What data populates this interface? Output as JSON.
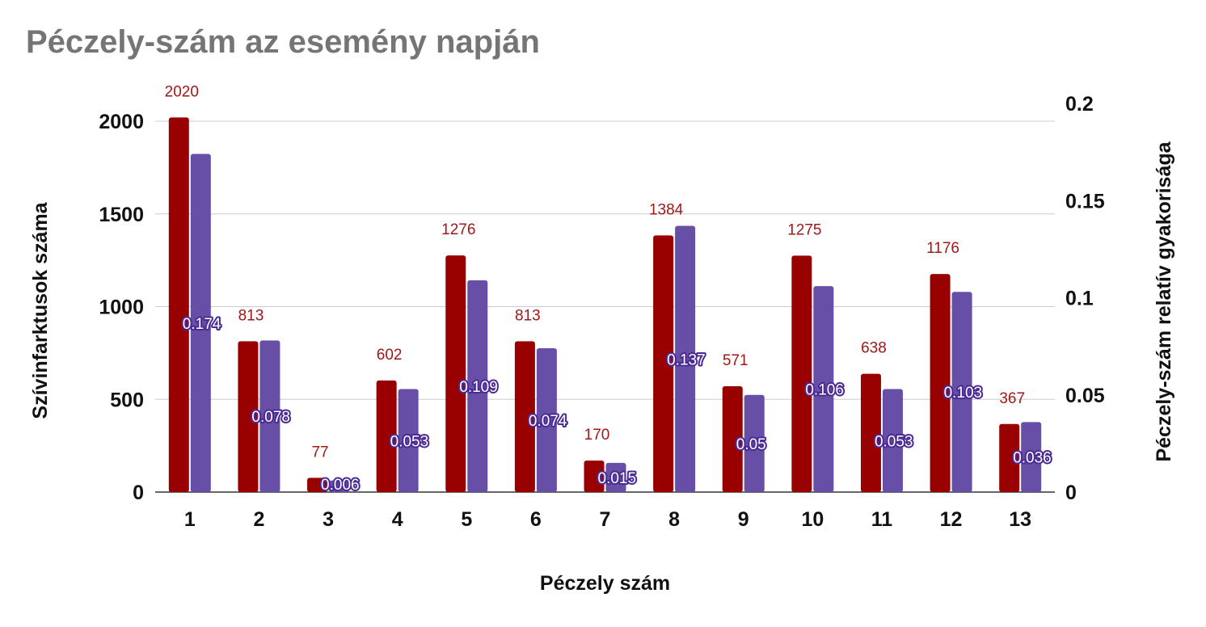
{
  "chart_data": {
    "type": "bar",
    "title": "Péczely-szám az esemény napján",
    "xlabel": "Péczely szám",
    "ylabel": "Szívinfarktusok száma",
    "y2label": "Péczely-szám relatív gyakorisága",
    "categories": [
      "1",
      "2",
      "3",
      "4",
      "5",
      "6",
      "7",
      "8",
      "9",
      "10",
      "11",
      "12",
      "13"
    ],
    "ylim": [
      0,
      2000
    ],
    "y2lim": [
      0,
      0.2
    ],
    "yticks": [
      "0",
      "500",
      "1000",
      "1500",
      "2000"
    ],
    "y2ticks": [
      "0",
      "0.05",
      "0.1",
      "0.15",
      "0.2"
    ],
    "grid": true,
    "series": [
      {
        "axis": "left",
        "color": "#990000",
        "values": [
          2020,
          813,
          77,
          602,
          1276,
          813,
          170,
          1384,
          571,
          1275,
          638,
          1176,
          367
        ],
        "labels": [
          "2020",
          "813",
          "77",
          "602",
          "1276",
          "813",
          "170",
          "1384",
          "571",
          "1275",
          "638",
          "1176",
          "367"
        ]
      },
      {
        "axis": "right",
        "color": "#674ea7",
        "values": [
          0.174,
          0.078,
          0.006,
          0.053,
          0.109,
          0.074,
          0.015,
          0.137,
          0.05,
          0.106,
          0.053,
          0.103,
          0.036
        ],
        "labels": [
          "0.174",
          "0.078",
          "0.006",
          "0.053",
          "0.109",
          "0.074",
          "0.015",
          "0.137",
          "0.05",
          "0.106",
          "0.053",
          "0.103",
          "0.036"
        ]
      }
    ]
  }
}
